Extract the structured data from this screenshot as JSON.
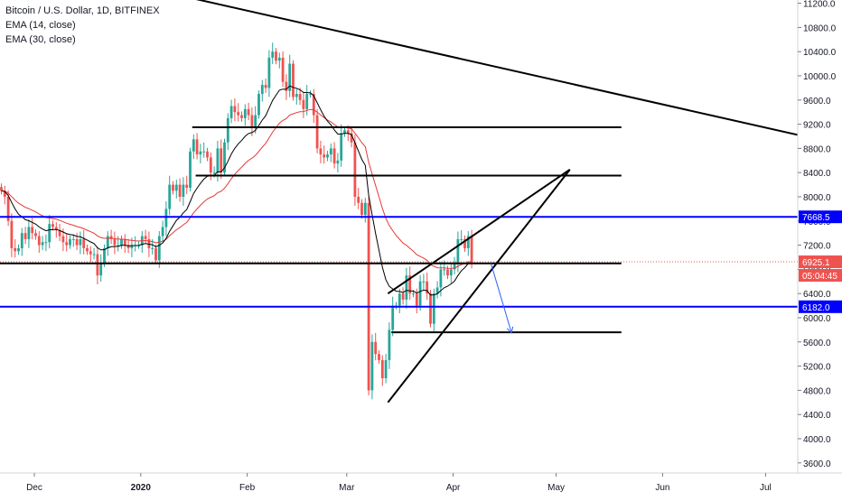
{
  "legend": {
    "title": "Bitcoin / U.S. Dollar, 1D, BITFINEX",
    "ema14": "EMA (14, close)",
    "ema30": "EMA (30, close)"
  },
  "colors": {
    "up": "#26a69a",
    "down": "#ef5350",
    "ema14": "#000000",
    "ema30": "#e53935",
    "level": "#0000ff",
    "trend": "#000000",
    "projection": "#2962ff",
    "axis_text": "#131722",
    "price_badge": "#ef5350"
  },
  "price_badges": {
    "level_high": "7668.5",
    "current": "6925.1",
    "countdown": "05:04:45",
    "level_low": "6182.0"
  },
  "chart_data": {
    "type": "candlestick",
    "title": "Bitcoin / U.S. Dollar, 1D, BITFINEX",
    "y_ticks": [
      "11200.0",
      "10800.0",
      "10400.0",
      "10000.0",
      "9600.0",
      "9200.0",
      "8800.0",
      "8400.0",
      "8000.0",
      "7600.0",
      "7200.0",
      "6800.0",
      "6400.0",
      "6000.0",
      "5600.0",
      "5200.0",
      "4800.0",
      "4400.0",
      "4000.0",
      "3600.0"
    ],
    "x_ticks": [
      "Dec",
      "2020",
      "Feb",
      "Mar",
      "Apr",
      "May",
      "Jun",
      "Jul"
    ],
    "ylim": [
      3400,
      11300
    ],
    "horizontal_levels": [
      7668.5,
      6182.0
    ],
    "current_price": 6925.1,
    "series_daily_closes": {
      "start": "2019-11-21",
      "values": [
        8100,
        8000,
        7600,
        7150,
        7100,
        7150,
        7400,
        7300,
        7500,
        7400,
        7350,
        7200,
        7250,
        7250,
        7550,
        7500,
        7450,
        7350,
        7250,
        7200,
        7300,
        7300,
        7200,
        7300,
        7150,
        7100,
        7050,
        7050,
        6700,
        6900,
        7150,
        7350,
        7300,
        7200,
        7200,
        7300,
        7200,
        7150,
        7200,
        7200,
        7200,
        7350,
        7300,
        7150,
        7150,
        6950,
        7350,
        7500,
        7800,
        8200,
        8100,
        8200,
        8000,
        8200,
        8150,
        8750,
        8950,
        8700,
        8750,
        8750,
        8650,
        8400,
        8400,
        8800,
        8400,
        8900,
        9300,
        9500,
        9400,
        9350,
        9300,
        9450,
        9350,
        9150,
        9350,
        9700,
        9850,
        9800,
        10300,
        10400,
        10250,
        10300,
        9900,
        9750,
        10200,
        9650,
        9700,
        9600,
        9450,
        9700,
        9700,
        9350,
        8800,
        8700,
        8650,
        8700,
        8800,
        8550,
        8600,
        9050,
        9100,
        9050,
        8900,
        8000,
        7900,
        7700,
        7900,
        4800,
        5600,
        5400,
        5300,
        5000,
        5300,
        5800,
        6200,
        6200,
        6400,
        6300,
        6700,
        6400,
        6400,
        6200,
        6600,
        6600,
        6400,
        5900,
        6400,
        6500,
        6800,
        6800,
        6700,
        6800,
        6900,
        7300,
        7300,
        7150,
        7350,
        6900
      ]
    },
    "trendlines": [
      {
        "from": [
          "2019-11-21",
          12000
        ],
        "to": [
          "2020-07-20",
          8900
        ]
      },
      {
        "from": [
          "2020-03-13",
          4600
        ],
        "to": [
          "2020-05-05",
          8450
        ]
      },
      {
        "from": [
          "2020-03-13",
          6400
        ],
        "to": [
          "2020-05-05",
          8450
        ]
      }
    ],
    "horizontal_segments": [
      {
        "y": 9150,
        "from": "2020-01-16",
        "to": "2020-05-20"
      },
      {
        "y": 8350,
        "from": "2020-01-17",
        "to": "2020-05-20"
      },
      {
        "y": 6900,
        "from": "2019-11-21",
        "to": "2020-05-20"
      },
      {
        "y": 5760,
        "from": "2020-03-14",
        "to": "2020-05-20"
      }
    ],
    "projection_arrow": {
      "from": [
        "2020-04-12",
        6900
      ],
      "to": [
        "2020-04-18",
        5750
      ]
    }
  }
}
